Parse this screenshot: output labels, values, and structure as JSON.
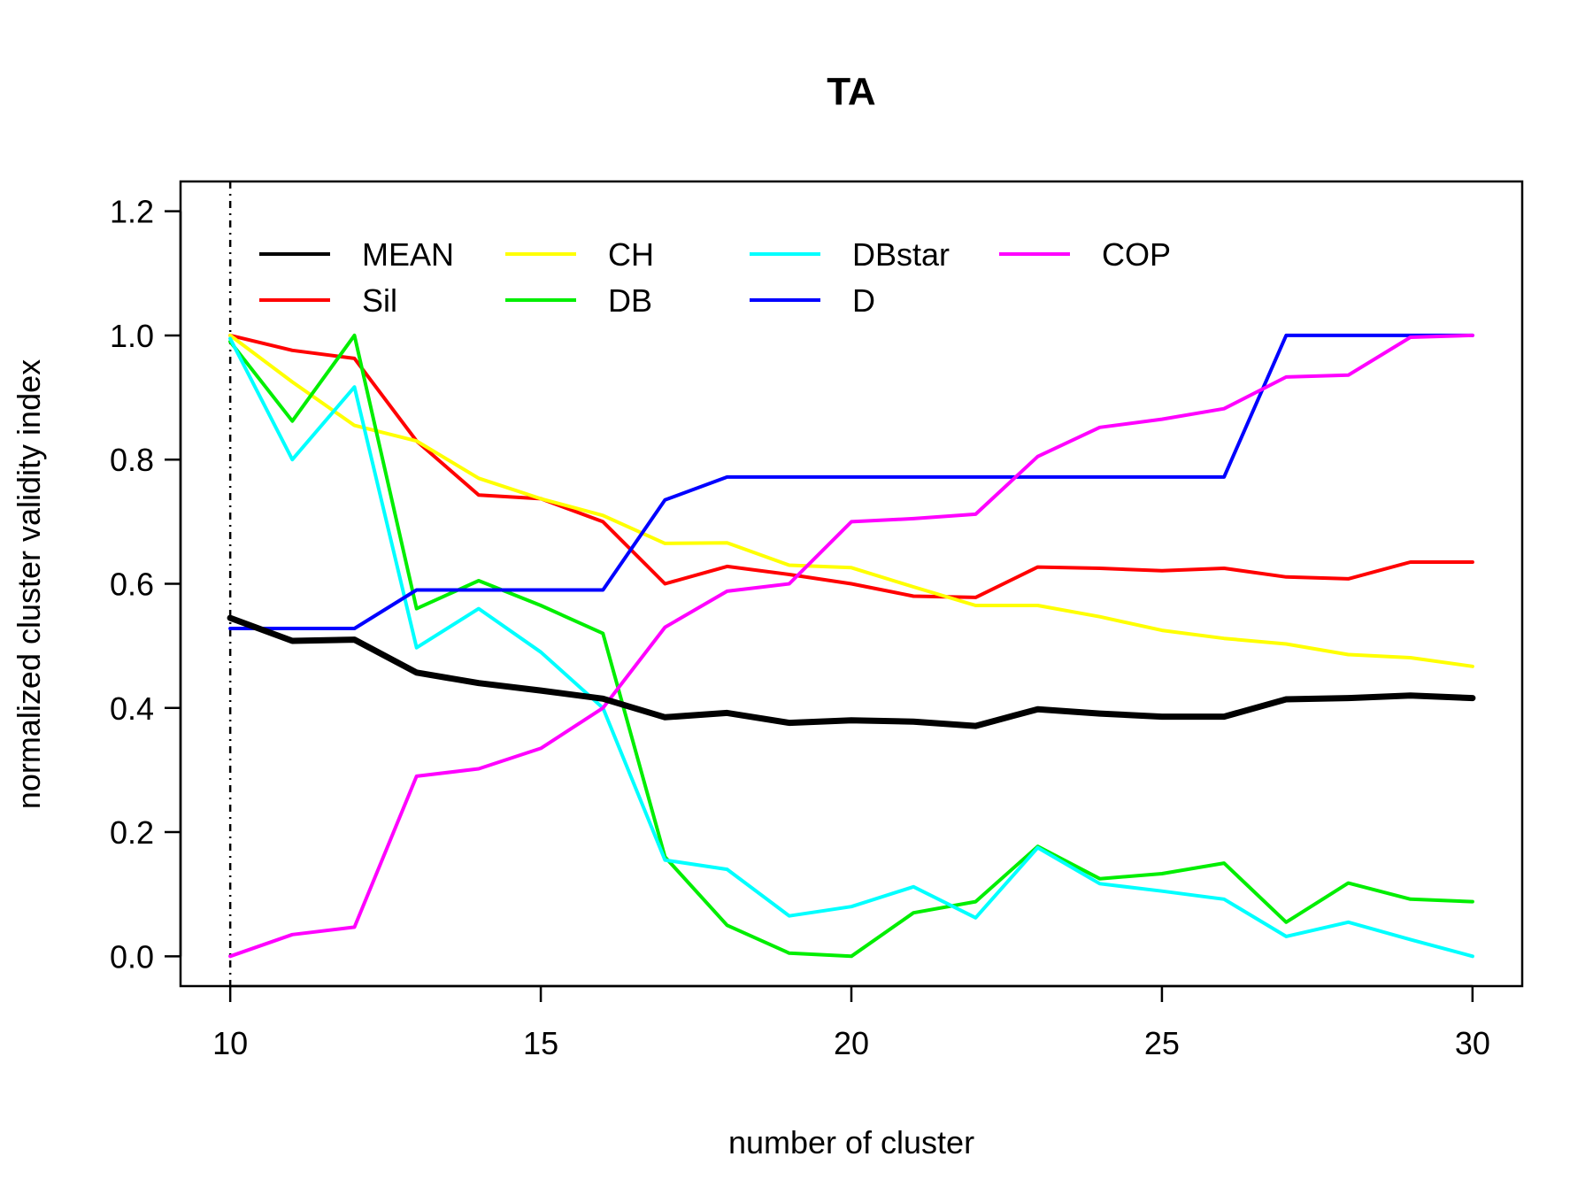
{
  "chart_data": {
    "type": "line",
    "title": "TA",
    "xlabel": "number of cluster",
    "ylabel": "normalized cluster validity index",
    "xlim": [
      9.2,
      30.8
    ],
    "ylim": [
      -0.048,
      1.248
    ],
    "xticks": [
      10,
      15,
      20,
      25,
      30
    ],
    "yticks": [
      0.0,
      0.2,
      0.4,
      0.6,
      0.8,
      1.0,
      1.2
    ],
    "xtick_labels": [
      "10",
      "15",
      "20",
      "25",
      "30"
    ],
    "ytick_labels": [
      "0.0",
      "0.2",
      "0.4",
      "0.6",
      "0.8",
      "1.0",
      "1.2"
    ],
    "vline_x": 10,
    "grid": false,
    "legend_position": "top",
    "x": [
      10,
      11,
      12,
      13,
      14,
      15,
      16,
      17,
      18,
      19,
      20,
      21,
      22,
      23,
      24,
      25,
      26,
      27,
      28,
      29,
      30
    ],
    "series": [
      {
        "name": "MEAN",
        "color": "#000000",
        "width": 7,
        "values": [
          0.545,
          0.508,
          0.51,
          0.457,
          0.44,
          0.428,
          0.415,
          0.385,
          0.392,
          0.376,
          0.38,
          0.378,
          0.371,
          0.398,
          0.391,
          0.386,
          0.386,
          0.414,
          0.416,
          0.42,
          0.416
        ]
      },
      {
        "name": "Sil",
        "color": "#ff0000",
        "width": 4,
        "values": [
          1.0,
          0.976,
          0.963,
          0.83,
          0.743,
          0.737,
          0.7,
          0.6,
          0.628,
          0.615,
          0.6,
          0.58,
          0.578,
          0.627,
          0.625,
          0.621,
          0.625,
          0.611,
          0.608,
          0.635,
          0.635
        ]
      },
      {
        "name": "CH",
        "color": "#ffff00",
        "width": 4,
        "values": [
          1.0,
          0.925,
          0.855,
          0.83,
          0.77,
          0.737,
          0.71,
          0.665,
          0.666,
          0.63,
          0.626,
          0.595,
          0.565,
          0.565,
          0.547,
          0.525,
          0.512,
          0.503,
          0.486,
          0.481,
          0.467
        ]
      },
      {
        "name": "DB",
        "color": "#00ee00",
        "width": 4,
        "values": [
          0.99,
          0.862,
          1.0,
          0.56,
          0.605,
          0.565,
          0.52,
          0.16,
          0.05,
          0.005,
          0.0,
          0.07,
          0.088,
          0.177,
          0.125,
          0.133,
          0.15,
          0.055,
          0.118,
          0.092,
          0.088
        ]
      },
      {
        "name": "DBstar",
        "color": "#00ffff",
        "width": 4,
        "values": [
          0.995,
          0.8,
          0.917,
          0.497,
          0.56,
          0.49,
          0.4,
          0.155,
          0.14,
          0.065,
          0.08,
          0.112,
          0.062,
          0.175,
          0.117,
          0.105,
          0.092,
          0.032,
          0.055,
          0.027,
          0.0
        ]
      },
      {
        "name": "D",
        "color": "#0000ff",
        "width": 4,
        "values": [
          0.528,
          0.528,
          0.528,
          0.59,
          0.59,
          0.59,
          0.59,
          0.735,
          0.772,
          0.772,
          0.772,
          0.772,
          0.772,
          0.772,
          0.772,
          0.772,
          0.772,
          1.0,
          1.0,
          1.0,
          1.0
        ]
      },
      {
        "name": "COP",
        "color": "#ff00ff",
        "width": 4,
        "values": [
          0.0,
          0.035,
          0.047,
          0.29,
          0.302,
          0.335,
          0.4,
          0.53,
          0.588,
          0.6,
          0.7,
          0.705,
          0.712,
          0.805,
          0.852,
          0.865,
          0.882,
          0.933,
          0.936,
          0.997,
          1.0
        ]
      }
    ]
  }
}
